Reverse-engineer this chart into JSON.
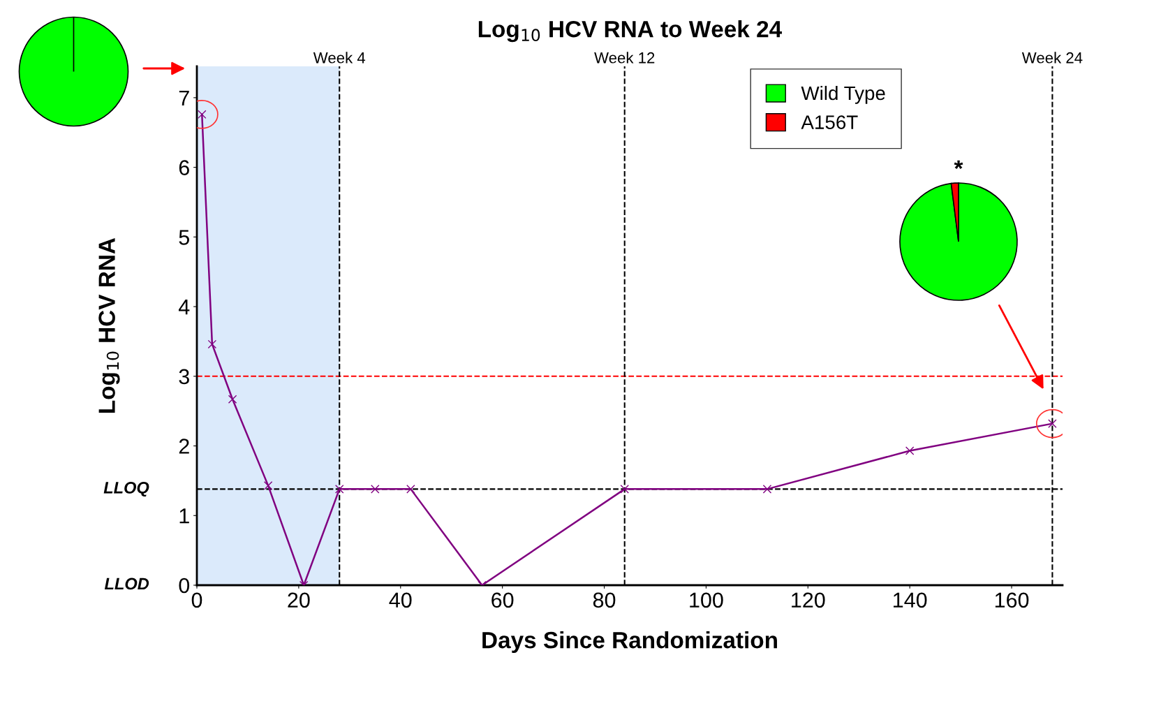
{
  "chart_data": [
    {
      "type": "line",
      "title": "Log$_{10}$ HCV RNA to Week 24",
      "xlabel": "Days Since Randomization",
      "ylabel": "Log$_{10}$ HCV RNA",
      "x": [
        1,
        3,
        7,
        14,
        21,
        28,
        35,
        42,
        56,
        84,
        112,
        140,
        168
      ],
      "series": [
        {
          "color": "#800080",
          "values": [
            6.76,
            3.46,
            2.67,
            1.43,
            0,
            1.38,
            1.38,
            1.38,
            0,
            1.38,
            1.38,
            1.93,
            2.32
          ]
        }
      ],
      "marker": "cross",
      "line_style": "solid",
      "grid": false,
      "xlim": [
        0,
        170
      ],
      "xticks": [
        0,
        20,
        40,
        60,
        80,
        100,
        120,
        140,
        160
      ],
      "ylim": [
        0,
        7.45
      ],
      "yticks": [
        0,
        1,
        2,
        3,
        4,
        5,
        6,
        7
      ],
      "ref_lines": [
        {
          "axis": "y",
          "value": 3,
          "color": "#ff0000",
          "line_style": "dashed"
        },
        {
          "axis": "y",
          "value": 1.38,
          "label": "LLOQ",
          "color": "#000000",
          "line_style": "dashed"
        },
        {
          "axis": "x",
          "value": 28,
          "label": "Week 4",
          "color": "#000000",
          "line_style": "dashed"
        },
        {
          "axis": "x",
          "value": 84,
          "label": "Week 12",
          "color": "#000000",
          "line_style": "dashed"
        },
        {
          "axis": "x",
          "value": 168,
          "label": "Week 24",
          "color": "#000000",
          "line_style": "dashed"
        }
      ],
      "bands": [
        {
          "axis": "x",
          "from": 0,
          "to": 28,
          "color": "#dbeafb"
        }
      ],
      "annotations": [
        "LLOD"
      ]
    },
    {
      "type": "pie",
      "categories": [
        "Wild Type",
        "A156T"
      ],
      "values": [
        100,
        0
      ],
      "colors": [
        "#00ff00",
        "#ff0000"
      ],
      "legend": "bottom right"
    },
    {
      "type": "pie",
      "categories": [
        null,
        null
      ],
      "values": [
        98,
        2
      ],
      "colors": [
        "#00ff00",
        "#ff0000"
      ],
      "annotations": [
        "*"
      ]
    }
  ]
}
